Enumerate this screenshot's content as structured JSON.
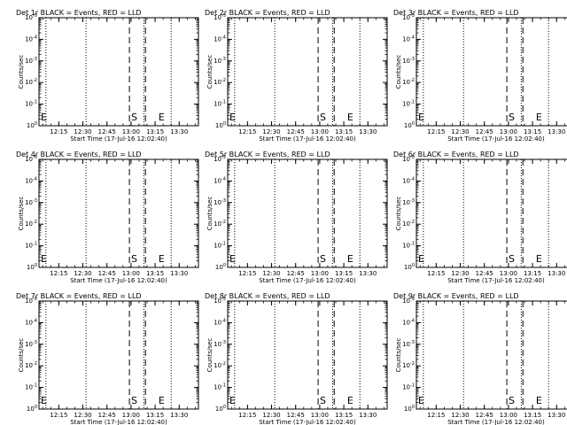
{
  "chart_data": [
    {
      "type": "line",
      "title": "Det 1r BLACK = Events, RED = LLD",
      "ylabel": "Counts/sec",
      "xlabel": "Start Time (17-Jul-16 12:02:40)",
      "x_ticks": [
        "12:15",
        "12:30",
        "12:45",
        "13:00",
        "13:15",
        "13:30"
      ],
      "y_ticks": [
        "10^0",
        "10^-1",
        "10^-2",
        "10^-3",
        "10^-4",
        "10^-5"
      ],
      "ylim": [
        1e-05,
        1
      ],
      "y_scale": "log",
      "grid": false,
      "legend": "none",
      "series": [],
      "annotations": [
        {
          "text": "E",
          "x": "12:02:40"
        },
        {
          "text": "S",
          "x": "13:02"
        },
        {
          "text": "E",
          "x": "13:19"
        }
      ],
      "dotted_lines": [
        "12:07",
        "12:32",
        "13:08",
        "13:25"
      ],
      "dashed_lines": [
        "12:59",
        "13:09"
      ]
    },
    {
      "type": "line",
      "title": "Det 2r BLACK = Events, RED = LLD",
      "ylabel": "Counts/sec",
      "xlabel": "Start Time (17-Jul-16 12:02:40)",
      "x_ticks": [
        "12:15",
        "12:30",
        "12:45",
        "13:00",
        "13:15",
        "13:30"
      ],
      "y_ticks": [
        "10^0",
        "10^-1",
        "10^-2",
        "10^-3",
        "10^-4",
        "10^-5"
      ],
      "ylim": [
        1e-05,
        1
      ],
      "y_scale": "log",
      "grid": false,
      "legend": "none",
      "series": [],
      "annotations": [
        {
          "text": "E",
          "x": "12:02:40"
        },
        {
          "text": "S",
          "x": "13:02"
        },
        {
          "text": "E",
          "x": "13:19"
        }
      ],
      "dotted_lines": [
        "12:07",
        "12:32",
        "13:08",
        "13:25"
      ],
      "dashed_lines": [
        "12:59",
        "13:09"
      ]
    },
    {
      "type": "line",
      "title": "Det 3r BLACK = Events, RED = LLD",
      "ylabel": "Counts/sec",
      "xlabel": "Start Time (17-Jul-16 12:02:40)",
      "x_ticks": [
        "12:15",
        "12:30",
        "12:45",
        "13:00",
        "13:15",
        "13:30"
      ],
      "y_ticks": [
        "10^0",
        "10^-1",
        "10^-2",
        "10^-3",
        "10^-4",
        "10^-5"
      ],
      "ylim": [
        1e-05,
        1
      ],
      "y_scale": "log",
      "grid": false,
      "legend": "none",
      "series": [],
      "annotations": [
        {
          "text": "E",
          "x": "12:02:40"
        },
        {
          "text": "S",
          "x": "13:02"
        },
        {
          "text": "E",
          "x": "13:19"
        }
      ],
      "dotted_lines": [
        "12:07",
        "12:32",
        "13:08",
        "13:25"
      ],
      "dashed_lines": [
        "12:59",
        "13:09"
      ]
    },
    {
      "type": "line",
      "title": "Det 4r BLACK = Events, RED = LLD",
      "ylabel": "Counts/sec",
      "xlabel": "Start Time (17-Jul-16 12:02:40)",
      "x_ticks": [
        "12:15",
        "12:30",
        "12:45",
        "13:00",
        "13:15",
        "13:30"
      ],
      "y_ticks": [
        "10^0",
        "10^-1",
        "10^-2",
        "10^-3",
        "10^-4",
        "10^-5"
      ],
      "ylim": [
        1e-05,
        1
      ],
      "y_scale": "log",
      "grid": false,
      "legend": "none",
      "series": [],
      "annotations": [
        {
          "text": "E",
          "x": "12:02:40"
        },
        {
          "text": "S",
          "x": "13:02"
        },
        {
          "text": "E",
          "x": "13:19"
        }
      ],
      "dotted_lines": [
        "12:07",
        "12:32",
        "13:08",
        "13:25"
      ],
      "dashed_lines": [
        "12:59",
        "13:09"
      ]
    },
    {
      "type": "line",
      "title": "Det 5r BLACK = Events, RED = LLD",
      "ylabel": "Counts/sec",
      "xlabel": "Start Time (17-Jul-16 12:02:40)",
      "x_ticks": [
        "12:15",
        "12:30",
        "12:45",
        "13:00",
        "13:15",
        "13:30"
      ],
      "y_ticks": [
        "10^0",
        "10^-1",
        "10^-2",
        "10^-3",
        "10^-4",
        "10^-5"
      ],
      "ylim": [
        1e-05,
        1
      ],
      "y_scale": "log",
      "grid": false,
      "legend": "none",
      "series": [],
      "annotations": [
        {
          "text": "E",
          "x": "12:02:40"
        },
        {
          "text": "S",
          "x": "13:02"
        },
        {
          "text": "E",
          "x": "13:19"
        }
      ],
      "dotted_lines": [
        "12:07",
        "12:32",
        "13:08",
        "13:25"
      ],
      "dashed_lines": [
        "12:59",
        "13:09"
      ]
    },
    {
      "type": "line",
      "title": "Det 6r BLACK = Events, RED = LLD",
      "ylabel": "Counts/sec",
      "xlabel": "Start Time (17-Jul-16 12:02:40)",
      "x_ticks": [
        "12:15",
        "12:30",
        "12:45",
        "13:00",
        "13:15",
        "13:30"
      ],
      "y_ticks": [
        "10^0",
        "10^-1",
        "10^-2",
        "10^-3",
        "10^-4",
        "10^-5"
      ],
      "ylim": [
        1e-05,
        1
      ],
      "y_scale": "log",
      "grid": false,
      "legend": "none",
      "series": [],
      "annotations": [
        {
          "text": "E",
          "x": "12:02:40"
        },
        {
          "text": "S",
          "x": "13:02"
        },
        {
          "text": "E",
          "x": "13:19"
        }
      ],
      "dotted_lines": [
        "12:07",
        "12:32",
        "13:08",
        "13:25"
      ],
      "dashed_lines": [
        "12:59",
        "13:09"
      ]
    },
    {
      "type": "line",
      "title": "Det 7r BLACK = Events, RED = LLD",
      "ylabel": "Counts/sec",
      "xlabel": "Start Time (17-Jul-16 12:02:40)",
      "x_ticks": [
        "12:15",
        "12:30",
        "12:45",
        "13:00",
        "13:15",
        "13:30"
      ],
      "y_ticks": [
        "10^0",
        "10^-1",
        "10^-2",
        "10^-3",
        "10^-4",
        "10^-5"
      ],
      "ylim": [
        1e-05,
        1
      ],
      "y_scale": "log",
      "grid": false,
      "legend": "none",
      "series": [],
      "annotations": [
        {
          "text": "E",
          "x": "12:02:40"
        },
        {
          "text": "S",
          "x": "13:02"
        },
        {
          "text": "E",
          "x": "13:19"
        }
      ],
      "dotted_lines": [
        "12:07",
        "12:32",
        "13:08",
        "13:25"
      ],
      "dashed_lines": [
        "12:59",
        "13:09"
      ]
    },
    {
      "type": "line",
      "title": "Det 8r BLACK = Events, RED = LLD",
      "ylabel": "Counts/sec",
      "xlabel": "Start Time (17-Jul-16 12:02:40)",
      "x_ticks": [
        "12:15",
        "12:30",
        "12:45",
        "13:00",
        "13:15",
        "13:30"
      ],
      "y_ticks": [
        "10^0",
        "10^-1",
        "10^-2",
        "10^-3",
        "10^-4",
        "10^-5"
      ],
      "ylim": [
        1e-05,
        1
      ],
      "y_scale": "log",
      "grid": false,
      "legend": "none",
      "series": [],
      "annotations": [
        {
          "text": "E",
          "x": "12:02:40"
        },
        {
          "text": "S",
          "x": "13:02"
        },
        {
          "text": "E",
          "x": "13:19"
        }
      ],
      "dotted_lines": [
        "12:07",
        "12:32",
        "13:08",
        "13:25"
      ],
      "dashed_lines": [
        "12:59",
        "13:09"
      ]
    },
    {
      "type": "line",
      "title": "Det 9r BLACK = Events, RED = LLD",
      "ylabel": "Counts/sec",
      "xlabel": "Start Time (17-Jul-16 12:02:40)",
      "x_ticks": [
        "12:15",
        "12:30",
        "12:45",
        "13:00",
        "13:15",
        "13:30"
      ],
      "y_ticks": [
        "10^0",
        "10^-1",
        "10^-2",
        "10^-3",
        "10^-4",
        "10^-5"
      ],
      "ylim": [
        1e-05,
        1
      ],
      "y_scale": "log",
      "grid": false,
      "legend": "none",
      "series": [],
      "annotations": [
        {
          "text": "E",
          "x": "12:02:40"
        },
        {
          "text": "S",
          "x": "13:02"
        },
        {
          "text": "E",
          "x": "13:19"
        }
      ],
      "dotted_lines": [
        "12:07",
        "12:32",
        "13:08",
        "13:25"
      ],
      "dashed_lines": [
        "12:59",
        "13:09"
      ]
    }
  ]
}
